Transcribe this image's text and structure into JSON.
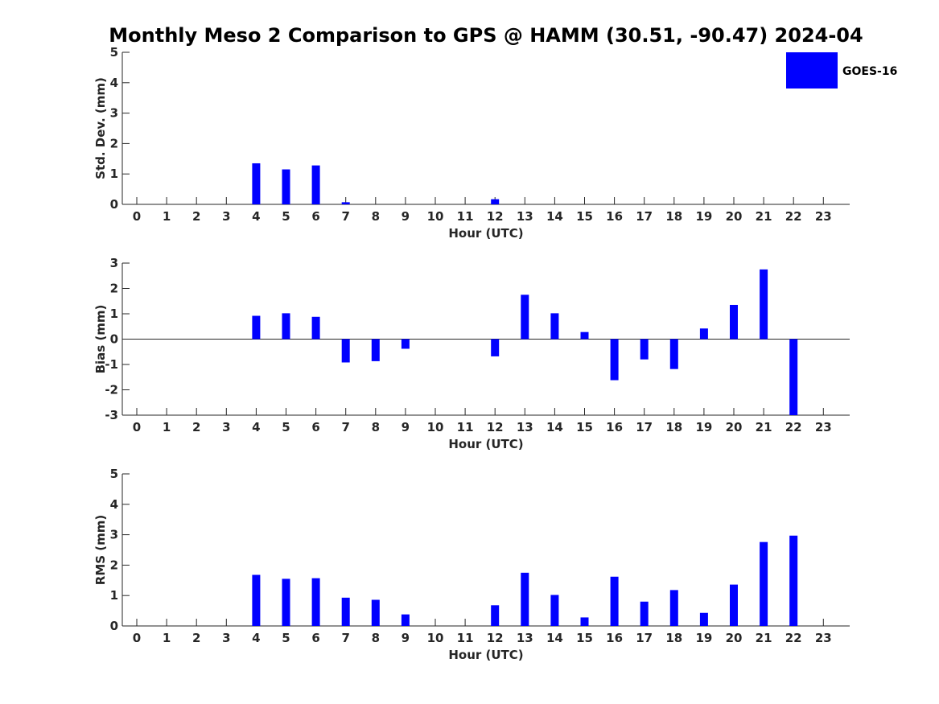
{
  "title": "Monthly Meso 2 Comparison to GPS @ HAMM (30.51, -90.47) 2024-04",
  "legend": {
    "label": "GOES-16",
    "color": "#0000ff"
  },
  "colors": {
    "bar": "#0000ff",
    "axis": "#262626"
  },
  "chart_data": [
    {
      "type": "bar",
      "xlabel": "Hour (UTC)",
      "ylabel": "Std. Dev. (mm)",
      "ylim": [
        0,
        5
      ],
      "yticks": [
        0,
        1,
        2,
        3,
        4,
        5
      ],
      "categories": [
        0,
        1,
        2,
        3,
        4,
        5,
        6,
        7,
        8,
        9,
        10,
        11,
        12,
        13,
        14,
        15,
        16,
        17,
        18,
        19,
        20,
        21,
        22,
        23
      ],
      "values": [
        0,
        0,
        0,
        0,
        1.35,
        1.15,
        1.28,
        0.07,
        0,
        0,
        0,
        0,
        0.17,
        0,
        0,
        0,
        0,
        0,
        0,
        0,
        0,
        0,
        0,
        0
      ],
      "legend": "top-right",
      "grid": false
    },
    {
      "type": "bar",
      "xlabel": "Hour (UTC)",
      "ylabel": "Bias (mm)",
      "ylim": [
        -3,
        3
      ],
      "yticks": [
        -3,
        -2,
        -1,
        0,
        1,
        2,
        3
      ],
      "categories": [
        0,
        1,
        2,
        3,
        4,
        5,
        6,
        7,
        8,
        9,
        10,
        11,
        12,
        13,
        14,
        15,
        16,
        17,
        18,
        19,
        20,
        21,
        22,
        23
      ],
      "values": [
        0,
        0,
        0,
        0,
        0.92,
        1.02,
        0.88,
        -0.92,
        -0.87,
        -0.38,
        0,
        0,
        -0.68,
        1.75,
        1.02,
        0.28,
        -1.62,
        -0.8,
        -1.18,
        0.42,
        1.35,
        2.75,
        -3.0,
        0
      ],
      "grid": false
    },
    {
      "type": "bar",
      "xlabel": "Hour (UTC)",
      "ylabel": "RMS (mm)",
      "ylim": [
        0,
        5
      ],
      "yticks": [
        0,
        1,
        2,
        3,
        4,
        5
      ],
      "categories": [
        0,
        1,
        2,
        3,
        4,
        5,
        6,
        7,
        8,
        9,
        10,
        11,
        12,
        13,
        14,
        15,
        16,
        17,
        18,
        19,
        20,
        21,
        22,
        23
      ],
      "values": [
        0,
        0,
        0,
        0,
        1.68,
        1.55,
        1.57,
        0.93,
        0.86,
        0.38,
        0,
        0,
        0.68,
        1.75,
        1.02,
        0.28,
        1.62,
        0.8,
        1.18,
        0.43,
        1.36,
        2.76,
        2.97,
        0
      ],
      "grid": false
    }
  ]
}
